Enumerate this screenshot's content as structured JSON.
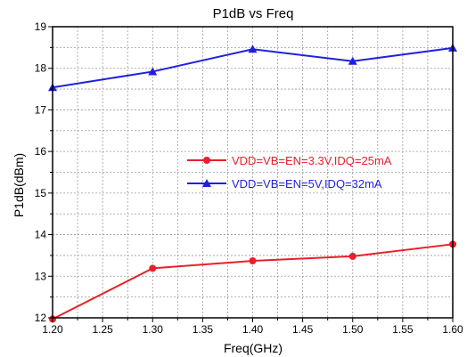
{
  "chart_data": {
    "type": "line",
    "title": "P1dB vs Freq",
    "xlabel": "Freq(GHz)",
    "ylabel": "P1dB(dBm)",
    "xlim": [
      1.2,
      1.6
    ],
    "ylim": [
      12,
      19
    ],
    "x_ticks": [
      "1.20",
      "1.25",
      "1.30",
      "1.35",
      "1.40",
      "1.45",
      "1.50",
      "1.55",
      "1.60"
    ],
    "y_ticks": [
      "12",
      "13",
      "14",
      "15",
      "16",
      "17",
      "18",
      "19"
    ],
    "grid": true,
    "legend_position": "center-right",
    "series": [
      {
        "name": "VDD=VB=EN=3.3V,IDQ=25mA",
        "color": "#e8202a",
        "marker": "circle",
        "x": [
          1.2,
          1.3,
          1.4,
          1.5,
          1.6
        ],
        "y": [
          11.97,
          13.19,
          13.37,
          13.48,
          13.77
        ]
      },
      {
        "name": "VDD=VB=EN=5V,IDQ=32mA",
        "color": "#1f1fe0",
        "marker": "triangle",
        "x": [
          1.2,
          1.3,
          1.4,
          1.5,
          1.6
        ],
        "y": [
          17.54,
          17.92,
          18.46,
          18.17,
          18.49
        ]
      }
    ]
  }
}
